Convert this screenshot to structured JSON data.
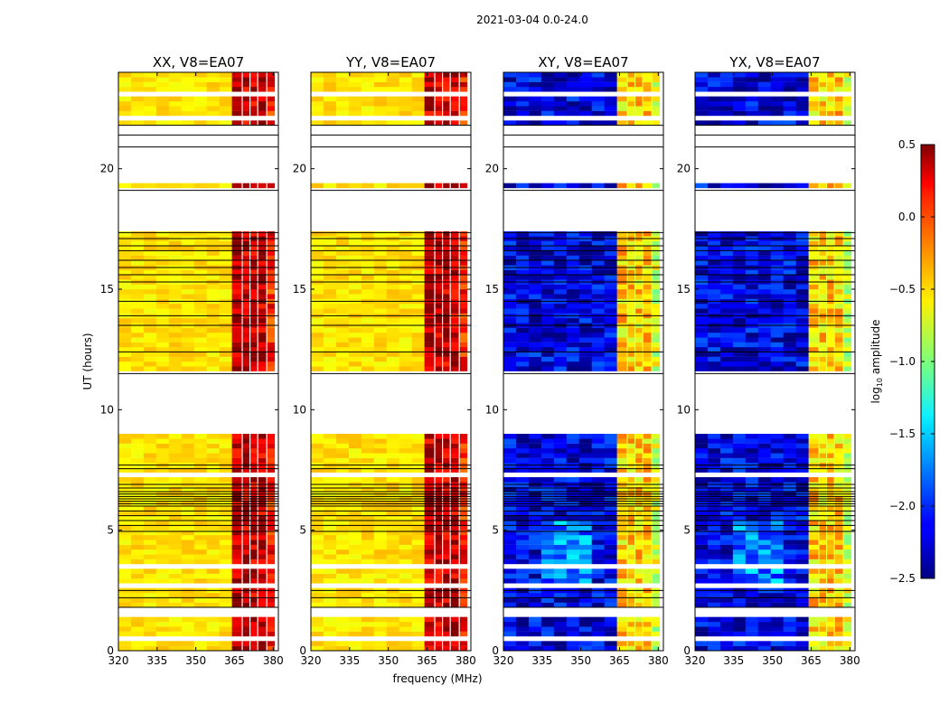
{
  "chart_data": {
    "type": "heatmap",
    "suptitle": "2021-03-04 0.0-24.0",
    "xlabel": "frequency (MHz)",
    "ylabel": "UT (hours)",
    "xlim": [
      320,
      382
    ],
    "ylim": [
      0,
      24
    ],
    "xticks": [
      320,
      335,
      350,
      365,
      380
    ],
    "xtick_labels": [
      "320",
      "335",
      "350",
      "365",
      "380"
    ],
    "yticks": [
      0,
      5,
      10,
      15,
      20
    ],
    "ytick_labels": [
      "0",
      "5",
      "10",
      "15",
      "20"
    ],
    "panels": [
      {
        "title": "XX, V8=EA07",
        "pol": "parallel"
      },
      {
        "title": "YY, V8=EA07",
        "pol": "parallel"
      },
      {
        "title": "XY, V8=EA07",
        "pol": "cross"
      },
      {
        "title": "YX, V8=EA07",
        "pol": "cross"
      }
    ],
    "colorbar": {
      "label_base": "log",
      "label_sub": "10",
      "label_rest": " amplitude",
      "range": [
        -2.5,
        0.5
      ],
      "ticks": [
        -2.5,
        -2.0,
        -1.5,
        -1.0,
        -0.5,
        0.0,
        0.5
      ],
      "tick_labels": [
        "−2.5",
        "−2.0",
        "−1.5",
        "−1.0",
        "−0.5",
        "0.0",
        "0.5"
      ],
      "colormap": "jet"
    },
    "flagged_ut_ranges": [
      [
        19.4,
        21.8
      ],
      [
        17.35,
        19.1
      ],
      [
        9.05,
        11.5
      ],
      [
        7.2,
        7.4
      ],
      [
        3.45,
        3.6
      ],
      [
        2.65,
        2.8
      ],
      [
        1.5,
        1.75
      ],
      [
        0.45,
        0.6
      ],
      [
        22.9,
        23.1
      ],
      [
        22.05,
        22.2
      ]
    ],
    "gap_lines_ut": [
      21.8,
      21.4,
      20.9,
      19.1,
      17.35,
      17.1,
      16.8,
      16.6,
      16.2,
      15.9,
      15.6,
      15.3,
      14.5,
      13.9,
      13.5,
      12.4,
      11.5,
      7.7,
      7.55,
      6.9,
      6.75,
      6.6,
      6.5,
      6.4,
      6.3,
      6.2,
      6.1,
      6.0,
      5.8,
      5.6,
      5.4,
      5.2,
      4.95,
      2.5,
      2.2,
      1.8
    ],
    "rfi_band_mhz": [
      364,
      382
    ],
    "rfi_channel_edges_mhz": [
      364,
      368,
      371,
      374,
      377.5,
      380.5
    ],
    "parallel_level_log10": {
      "band_320_363": -0.55,
      "rfi_band": 0.3
    },
    "cross_level_log10": {
      "band_320_363": -2.2,
      "rfi_band": -0.5
    }
  }
}
